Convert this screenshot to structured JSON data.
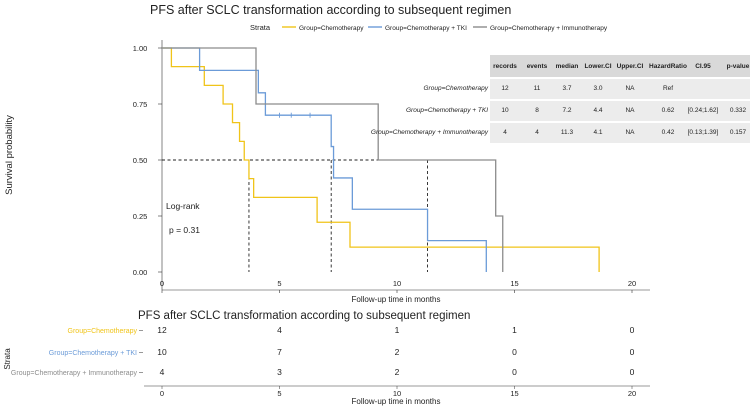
{
  "chart_data": [
    {
      "type": "line",
      "subtype": "kaplan-meier",
      "title": "PFS after SCLC transformation according to subsequent regimen",
      "xlabel": "Follow-up time in months",
      "ylabel": "Survival probability",
      "xlim": [
        0,
        20
      ],
      "ylim": [
        0,
        1
      ],
      "x_ticks": [
        "0",
        "5",
        "10",
        "15",
        "20"
      ],
      "y_ticks": [
        "0.00",
        "0.25",
        "0.50",
        "0.75",
        "1.00"
      ],
      "grid": false,
      "legend_title": "Strata",
      "legend_position": "top",
      "annotation": {
        "line1": "Log-rank",
        "line2": "p = 0.31"
      },
      "median_line_y": 0.5,
      "medians": [
        3.7,
        7.2,
        11.3
      ],
      "series": [
        {
          "name": "Group=Chemotherapy",
          "color": "#f0c419",
          "steps": [
            [
              0,
              1
            ],
            [
              0.4,
              0.917
            ],
            [
              1.8,
              0.833
            ],
            [
              2.6,
              0.75
            ],
            [
              3.0,
              0.667
            ],
            [
              3.3,
              0.583
            ],
            [
              3.5,
              0.5
            ],
            [
              3.7,
              0.417
            ],
            [
              3.9,
              0.333
            ],
            [
              4.9,
              0.333
            ],
            [
              6.6,
              0.222
            ],
            [
              7.7,
              0.222
            ],
            [
              8.0,
              0.111
            ],
            [
              18.6,
              0.111
            ],
            [
              18.6,
              0
            ]
          ],
          "censors": []
        },
        {
          "name": "Group=Chemotherapy + TKI",
          "color": "#6b9bd8",
          "steps": [
            [
              0,
              1
            ],
            [
              1.6,
              0.9
            ],
            [
              4.1,
              0.8
            ],
            [
              4.4,
              0.7
            ],
            [
              7.2,
              0.56
            ],
            [
              7.3,
              0.42
            ],
            [
              8.1,
              0.28
            ],
            [
              11.3,
              0.14
            ],
            [
              13.8,
              0.14
            ],
            [
              13.8,
              0
            ]
          ],
          "censors": [
            [
              5.0,
              0.7
            ],
            [
              5.5,
              0.7
            ],
            [
              6.3,
              0.7
            ]
          ]
        },
        {
          "name": "Group=Chemotherapy + Immunotherapy",
          "color": "#8c8c8c",
          "steps": [
            [
              0,
              1
            ],
            [
              4.0,
              0.75
            ],
            [
              9.2,
              0.5
            ],
            [
              14.2,
              0.25
            ],
            [
              14.5,
              0.25
            ],
            [
              14.5,
              0
            ]
          ],
          "censors": []
        }
      ],
      "table": {
        "headers": [
          "records",
          "events",
          "median",
          "Lower.CI",
          "Upper.CI",
          "HazardRatio",
          "CI.95",
          "p-value"
        ],
        "rows": [
          {
            "label": "Group=Chemotherapy",
            "cells": [
              "12",
              "11",
              "3.7",
              "3.0",
              "NA",
              "Ref",
              "",
              ""
            ]
          },
          {
            "label": "Group=Chemotherapy + TKI",
            "cells": [
              "10",
              "8",
              "7.2",
              "4.4",
              "NA",
              "0.62",
              "[0.24;1.62]",
              "0.332"
            ]
          },
          {
            "label": "Group=Chemotherapy + Immunotherapy",
            "cells": [
              "4",
              "4",
              "11.3",
              "4.1",
              "NA",
              "0.42",
              "[0.13;1.39]",
              "0.157"
            ]
          }
        ]
      }
    },
    {
      "type": "table",
      "title": "PFS after SCLC transformation according to subsequent regimen",
      "xlabel": "Follow-up time in months",
      "ylabel": "Strata",
      "x_ticks": [
        "0",
        "5",
        "10",
        "15",
        "20"
      ],
      "x_positions": [
        0,
        5,
        10,
        15,
        20
      ],
      "rows": [
        {
          "name": "Group=Chemotherapy",
          "color": "#f0c419",
          "values": [
            "12",
            "4",
            "1",
            "1",
            "0"
          ]
        },
        {
          "name": "Group=Chemotherapy + TKI",
          "color": "#6b9bd8",
          "values": [
            "10",
            "7",
            "2",
            "0",
            "0"
          ]
        },
        {
          "name": "Group=Chemotherapy + Immunotherapy",
          "color": "#8c8c8c",
          "values": [
            "4",
            "3",
            "2",
            "0",
            "0"
          ]
        }
      ]
    }
  ]
}
